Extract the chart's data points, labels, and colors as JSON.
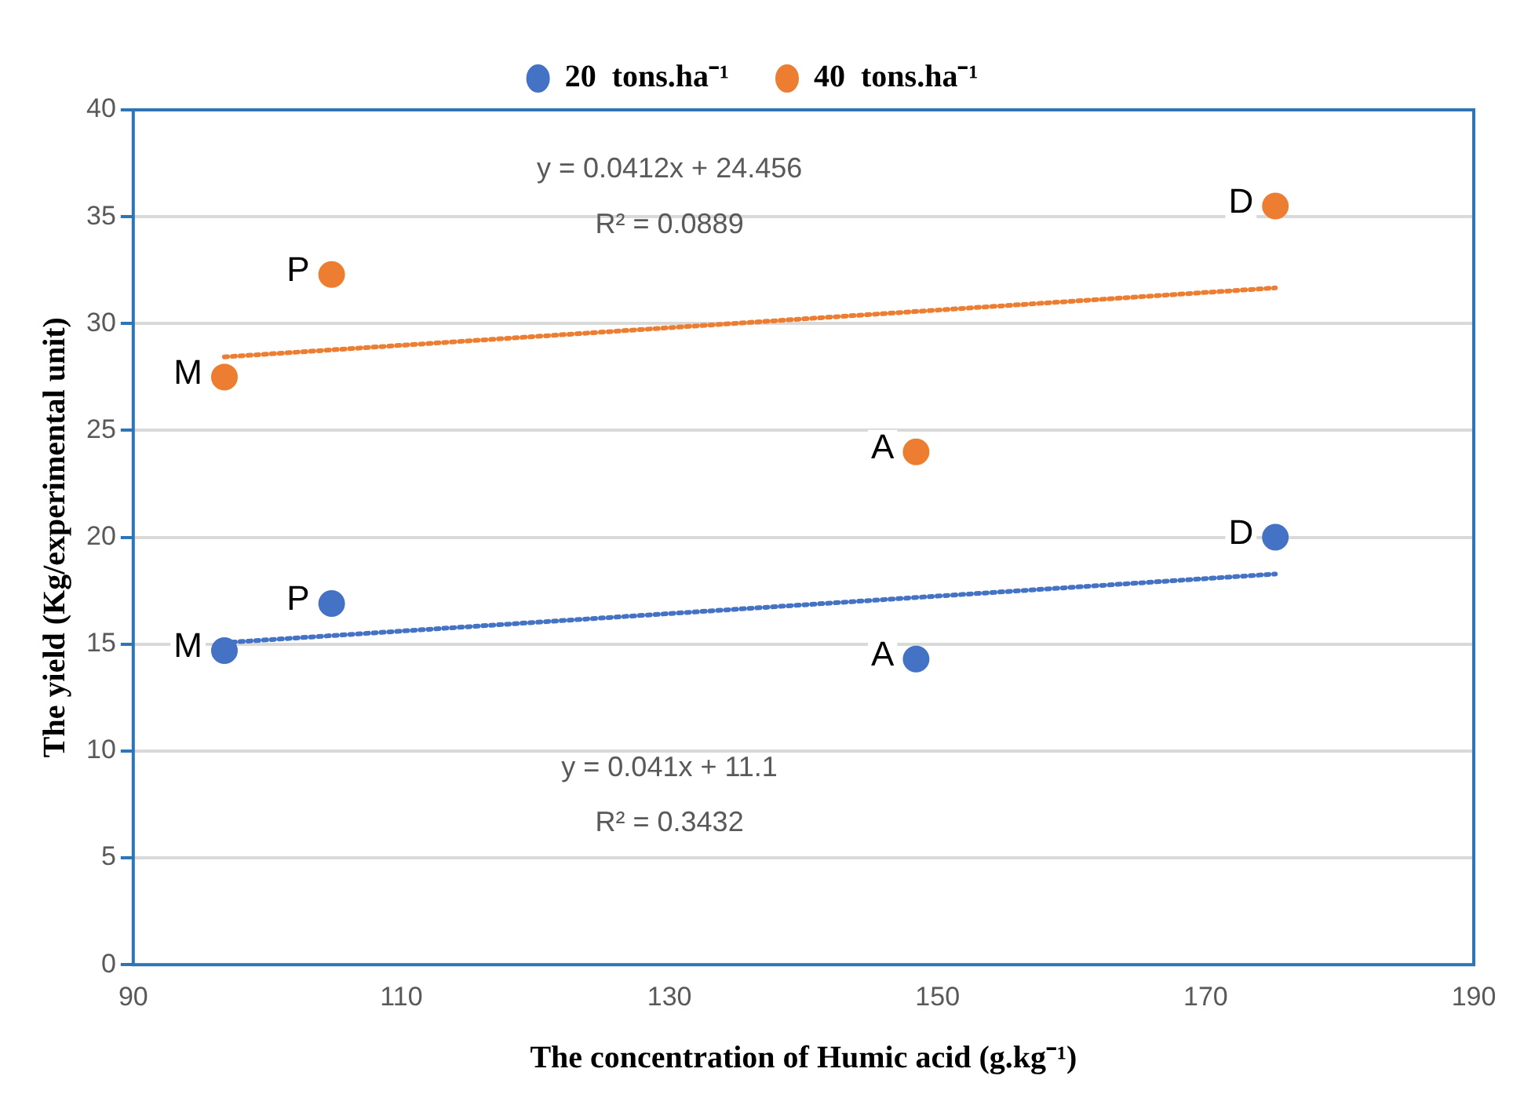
{
  "chart_data": {
    "type": "scatter",
    "xlabel": "The concentration of Humic acid (g.kg⁻¹)",
    "ylabel": "The yield (Kg/experimental unit)",
    "xlim": [
      90,
      190
    ],
    "xticks": [
      90,
      110,
      130,
      150,
      170,
      190
    ],
    "ylim": [
      0,
      40
    ],
    "yticks": [
      0,
      5,
      10,
      15,
      20,
      25,
      30,
      35,
      40
    ],
    "grid": "y",
    "legend": "top",
    "marker": "circle",
    "series": [
      {
        "name": "20  tons.ha⁻¹",
        "color": "#4472c4",
        "x": [
          96.8,
          104.8,
          148.4,
          175.2
        ],
        "values": [
          14.7,
          16.9,
          14.3,
          20.0
        ]
      },
      {
        "name": "40  tons.ha⁻¹",
        "color": "#ed7d31",
        "x": [
          96.8,
          104.8,
          148.4,
          175.2
        ],
        "values": [
          27.5,
          32.3,
          24.0,
          35.5
        ]
      },
      {
        "type": "line",
        "line_style": "dotted",
        "marker": "none",
        "color": "#4472c4",
        "x": [
          96.8,
          175.2
        ],
        "values": [
          15.07,
          18.28
        ]
      },
      {
        "type": "line",
        "line_style": "dotted",
        "marker": "none",
        "color": "#ed7d31",
        "x": [
          96.8,
          175.2
        ],
        "values": [
          28.44,
          31.67
        ]
      }
    ],
    "annotations": [
      {
        "text": "M",
        "x": 96.8,
        "y": 14.7
      },
      {
        "text": "P",
        "x": 104.8,
        "y": 16.9
      },
      {
        "text": "A",
        "x": 148.4,
        "y": 14.3
      },
      {
        "text": "D",
        "x": 175.2,
        "y": 20.0
      },
      {
        "text": "M",
        "x": 96.8,
        "y": 27.5
      },
      {
        "text": "P",
        "x": 104.8,
        "y": 32.3
      },
      {
        "text": "A",
        "x": 148.4,
        "y": 24.0
      },
      {
        "text": "D",
        "x": 175.2,
        "y": 35.5
      },
      "y = 0.0412x + 24.456",
      "R² = 0.0889",
      "y = 0.041x + 11.1",
      "R² = 0.3432"
    ]
  }
}
